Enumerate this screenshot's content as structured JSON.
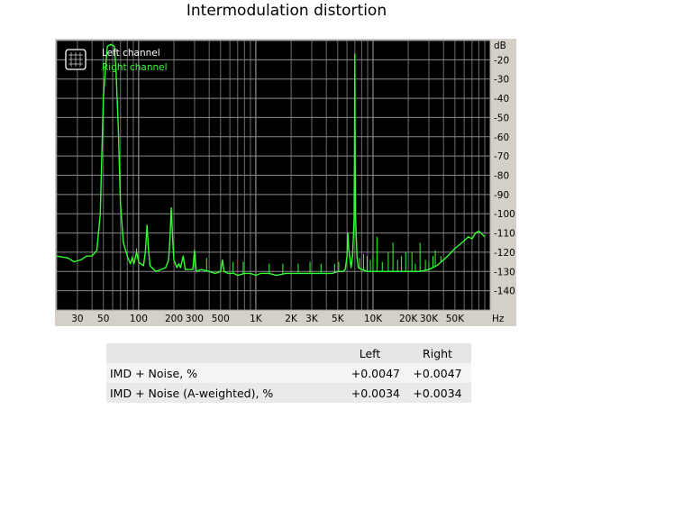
{
  "title": "Intermodulation distortion",
  "chart_data": {
    "type": "line",
    "x_scale": "log",
    "xlim": [
      20,
      100000
    ],
    "ylim": [
      -150,
      -10
    ],
    "grid": true,
    "x_ticks": [
      {
        "v": 30,
        "label": "30"
      },
      {
        "v": 50,
        "label": "50"
      },
      {
        "v": 100,
        "label": "100"
      },
      {
        "v": 200,
        "label": "200"
      },
      {
        "v": 300,
        "label": "300"
      },
      {
        "v": 500,
        "label": "500"
      },
      {
        "v": 1000,
        "label": "1K"
      },
      {
        "v": 2000,
        "label": "2K"
      },
      {
        "v": 3000,
        "label": "3K"
      },
      {
        "v": 5000,
        "label": "5K"
      },
      {
        "v": 10000,
        "label": "10K"
      },
      {
        "v": 20000,
        "label": "20K"
      },
      {
        "v": 30000,
        "label": "30K"
      },
      {
        "v": 50000,
        "label": "50K"
      }
    ],
    "x_unit": "Hz",
    "y_ticks": [
      {
        "v": -20,
        "label": "-20"
      },
      {
        "v": -30,
        "label": "-30"
      },
      {
        "v": -40,
        "label": "-40"
      },
      {
        "v": -50,
        "label": "-50"
      },
      {
        "v": -60,
        "label": "-60"
      },
      {
        "v": -70,
        "label": "-70"
      },
      {
        "v": -80,
        "label": "-80"
      },
      {
        "v": -90,
        "label": "-90"
      },
      {
        "v": -100,
        "label": "-100"
      },
      {
        "v": -110,
        "label": "-110"
      },
      {
        "v": -120,
        "label": "-120"
      },
      {
        "v": -130,
        "label": "-130"
      },
      {
        "v": -140,
        "label": "-140"
      }
    ],
    "y_unit": "dB",
    "legend_position": "top-left",
    "series": [
      {
        "name": "Left channel",
        "color": "#ffffff",
        "visible": false,
        "points": []
      },
      {
        "name": "Right channel",
        "color": "#33ff33",
        "points": [
          [
            20,
            -122
          ],
          [
            25,
            -123
          ],
          [
            28,
            -125
          ],
          [
            32,
            -124
          ],
          [
            36,
            -122
          ],
          [
            40,
            -122
          ],
          [
            44,
            -119
          ],
          [
            47,
            -100
          ],
          [
            50,
            -40
          ],
          [
            52,
            -25
          ],
          [
            54,
            -13
          ],
          [
            58,
            -12
          ],
          [
            62,
            -13
          ],
          [
            64,
            -25
          ],
          [
            67,
            -55
          ],
          [
            70,
            -95
          ],
          [
            74,
            -115
          ],
          [
            80,
            -122
          ],
          [
            85,
            -126
          ],
          [
            88,
            -123
          ],
          [
            91,
            -126
          ],
          [
            96,
            -120
          ],
          [
            100,
            -125
          ],
          [
            104,
            -126
          ],
          [
            110,
            -127
          ],
          [
            114,
            -120
          ],
          [
            118,
            -106
          ],
          [
            121,
            -118
          ],
          [
            125,
            -127
          ],
          [
            140,
            -130
          ],
          [
            155,
            -129
          ],
          [
            170,
            -128
          ],
          [
            180,
            -124
          ],
          [
            185,
            -113
          ],
          [
            190,
            -97
          ],
          [
            195,
            -113
          ],
          [
            200,
            -124
          ],
          [
            212,
            -128
          ],
          [
            220,
            -126
          ],
          [
            228,
            -128
          ],
          [
            240,
            -122
          ],
          [
            250,
            -129
          ],
          [
            290,
            -129
          ],
          [
            300,
            -119
          ],
          [
            310,
            -130
          ],
          [
            340,
            -129
          ],
          [
            400,
            -130
          ],
          [
            450,
            -131
          ],
          [
            500,
            -130
          ],
          [
            520,
            -124
          ],
          [
            535,
            -130
          ],
          [
            580,
            -131
          ],
          [
            650,
            -131
          ],
          [
            700,
            -132
          ],
          [
            800,
            -131
          ],
          [
            900,
            -131
          ],
          [
            1000,
            -132
          ],
          [
            1100,
            -131
          ],
          [
            1300,
            -131
          ],
          [
            1500,
            -132
          ],
          [
            1800,
            -131
          ],
          [
            2000,
            -131
          ],
          [
            2400,
            -131
          ],
          [
            3000,
            -131
          ],
          [
            3500,
            -131
          ],
          [
            4000,
            -131
          ],
          [
            4500,
            -131
          ],
          [
            5000,
            -130
          ],
          [
            5500,
            -130
          ],
          [
            5800,
            -129
          ],
          [
            6000,
            -122
          ],
          [
            6100,
            -110
          ],
          [
            6200,
            -118
          ],
          [
            6500,
            -128
          ],
          [
            6700,
            -122
          ],
          [
            6800,
            -112
          ],
          [
            6900,
            -102
          ],
          [
            6950,
            -70
          ],
          [
            7000,
            -17
          ],
          [
            7050,
            -70
          ],
          [
            7100,
            -102
          ],
          [
            7200,
            -112
          ],
          [
            7300,
            -122
          ],
          [
            7500,
            -128
          ],
          [
            8000,
            -129
          ],
          [
            9000,
            -130
          ],
          [
            10000,
            -130
          ],
          [
            12000,
            -130
          ],
          [
            15000,
            -130
          ],
          [
            20000,
            -130
          ],
          [
            25000,
            -130
          ],
          [
            30000,
            -129
          ],
          [
            35000,
            -127
          ],
          [
            40000,
            -124
          ],
          [
            45000,
            -121
          ],
          [
            50000,
            -118
          ],
          [
            55000,
            -116
          ],
          [
            60000,
            -114
          ],
          [
            65000,
            -112
          ],
          [
            70000,
            -113
          ],
          [
            75000,
            -110
          ],
          [
            80000,
            -109
          ],
          [
            90000,
            -112
          ]
        ],
        "spurs": [
          [
            88,
            -122
          ],
          [
            96,
            -118
          ],
          [
            300,
            -119
          ],
          [
            380,
            -123
          ],
          [
            520,
            -124
          ],
          [
            640,
            -125
          ],
          [
            780,
            -125
          ],
          [
            1300,
            -126
          ],
          [
            1700,
            -126
          ],
          [
            2300,
            -126
          ],
          [
            2900,
            -125
          ],
          [
            3600,
            -126
          ],
          [
            4700,
            -126
          ],
          [
            5100,
            -125
          ],
          [
            6700,
            -122
          ],
          [
            7700,
            -123
          ],
          [
            8300,
            -121
          ],
          [
            8900,
            -122
          ],
          [
            9500,
            -124
          ],
          [
            10000,
            -122
          ],
          [
            10800,
            -112
          ],
          [
            12000,
            -125
          ],
          [
            13500,
            -120
          ],
          [
            14800,
            -115
          ],
          [
            16200,
            -124
          ],
          [
            17500,
            -122
          ],
          [
            19000,
            -120
          ],
          [
            21500,
            -120
          ],
          [
            23000,
            -126
          ],
          [
            25200,
            -115
          ],
          [
            28000,
            -124
          ],
          [
            30000,
            -125
          ],
          [
            32500,
            -122
          ],
          [
            34000,
            -119
          ],
          [
            38000,
            -122
          ]
        ]
      }
    ]
  },
  "table": {
    "columns": [
      "",
      "Left",
      "Right"
    ],
    "rows": [
      {
        "label": "IMD + Noise, %",
        "left": "+0.0047",
        "right": "+0.0047"
      },
      {
        "label": "IMD + Noise (A-weighted), %",
        "left": "+0.0034",
        "right": "+0.0034"
      }
    ]
  }
}
